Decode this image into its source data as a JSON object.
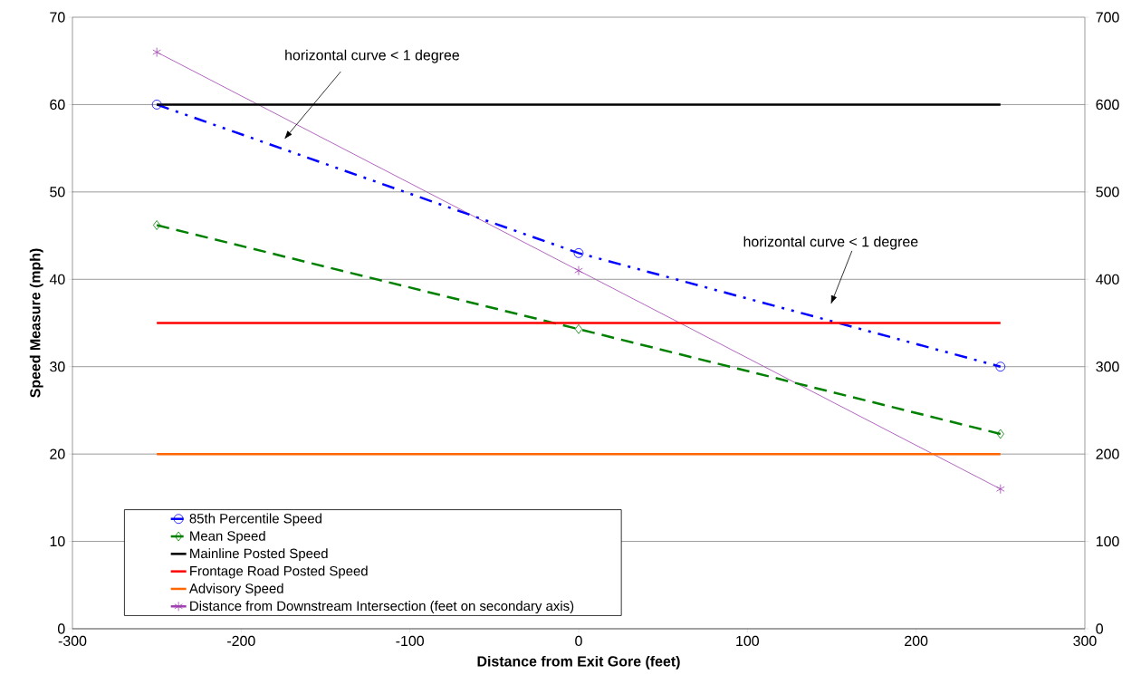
{
  "chart_data": {
    "type": "line",
    "xlabel": "Distance from Exit Gore (feet)",
    "ylabel": "Speed Measure (mph)",
    "x": [
      -250,
      0,
      250
    ],
    "series": [
      {
        "name": "85th Percentile Speed",
        "color": "#0000ff",
        "values": [
          60,
          43,
          30
        ],
        "marker": "circle",
        "line_style": "dashdotdotted"
      },
      {
        "name": "Mean Speed",
        "color": "#008000",
        "values": [
          46.2,
          34.3,
          22.3
        ],
        "marker": "diamond",
        "line_style": "dashed"
      },
      {
        "name": "Mainline Posted Speed",
        "color": "#000000",
        "values": [
          60,
          60,
          60
        ],
        "marker": "none",
        "line_style": "solid"
      },
      {
        "name": "Frontage Road Posted Speed",
        "color": "#ff0000",
        "values": [
          35,
          35,
          35
        ],
        "marker": "none",
        "line_style": "solid"
      },
      {
        "name": "Advisory Speed",
        "color": "#ff6600",
        "values": [
          20,
          20,
          20
        ],
        "marker": "none",
        "line_style": "solid"
      },
      {
        "name": "Distance from Downstream Intersection (feet on secondary axis)",
        "color": "#a040b0",
        "values": [
          660,
          410,
          160
        ],
        "marker": "cross",
        "line_style": "solid",
        "axis": "y2"
      }
    ],
    "xlim": [
      -300,
      300
    ],
    "xticks": [
      -300,
      -200,
      -100,
      0,
      100,
      200,
      300
    ],
    "ylim": [
      0,
      70
    ],
    "yticks": [
      0,
      10,
      20,
      30,
      40,
      50,
      60,
      70
    ],
    "y2lim": [
      0,
      700
    ],
    "y2ticks": [
      0,
      100,
      200,
      300,
      400,
      500,
      600,
      700
    ],
    "annotations": [
      "horizontal curve < 1 degree",
      "horizontal curve < 1 degree"
    ],
    "grid": "y",
    "legend": "bottom left"
  }
}
